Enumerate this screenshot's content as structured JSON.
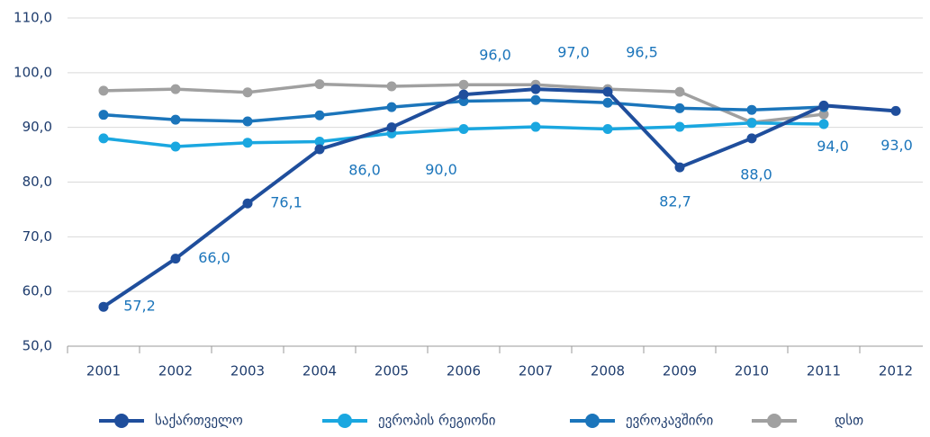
{
  "chart_data": {
    "type": "line",
    "categories": [
      "2001",
      "2002",
      "2003",
      "2004",
      "2005",
      "2006",
      "2007",
      "2008",
      "2009",
      "2010",
      "2011",
      "2012"
    ],
    "series": [
      {
        "name": "საქართველო",
        "color": "#1f4e9c",
        "values": [
          57.2,
          66.0,
          76.1,
          86.0,
          90.0,
          96.0,
          97.0,
          96.5,
          82.7,
          88.0,
          94.0,
          93.0
        ],
        "value_labels": [
          "57,2",
          "66,0",
          "76,1",
          "86,0",
          "90,0",
          "96,0",
          "97,0",
          "96,5",
          "82,7",
          "88,0",
          "94,0",
          "93,0"
        ]
      },
      {
        "name": "ევროპის რეგიონი",
        "color": "#1aa7e0",
        "values": [
          88.0,
          86.5,
          87.2,
          87.4,
          88.9,
          89.7,
          90.1,
          89.7,
          90.1,
          90.8,
          90.6,
          null
        ]
      },
      {
        "name": "ევროკავშირი",
        "color": "#1b75bb",
        "values": [
          92.3,
          91.4,
          91.1,
          92.2,
          93.7,
          94.8,
          95.0,
          94.5,
          93.5,
          93.2,
          93.7,
          null
        ]
      },
      {
        "name": "დსთ",
        "color": "#a0a0a0",
        "values": [
          96.7,
          97.0,
          96.4,
          97.9,
          97.5,
          97.8,
          97.8,
          97.0,
          96.5,
          90.9,
          92.4,
          null
        ]
      }
    ],
    "ylim": [
      50,
      110
    ],
    "yticks": [
      {
        "value": 50,
        "label": "50,0"
      },
      {
        "value": 60,
        "label": "60,0"
      },
      {
        "value": 70,
        "label": "70,0"
      },
      {
        "value": 80,
        "label": "80,0"
      },
      {
        "value": 90,
        "label": "90,0"
      },
      {
        "value": 100,
        "label": "100,0"
      },
      {
        "value": 110,
        "label": "110,0"
      }
    ],
    "grid": true
  }
}
